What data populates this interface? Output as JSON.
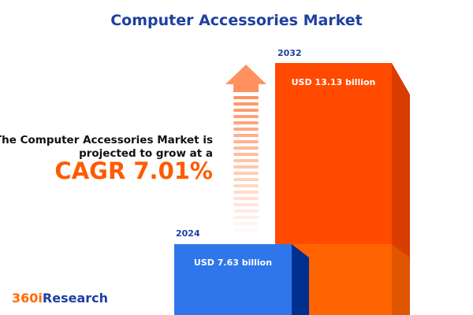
{
  "title": "Computer Accessories Market",
  "headline_line1": "The Computer Accessories Market is",
  "headline_line2": "projected to grow at a",
  "cagr": "CAGR 7.01%",
  "logo": {
    "part1": "360i",
    "part2": "Research"
  },
  "colors": {
    "blue": "#2f76ea",
    "orange": "#ff4a00",
    "navy": "#1e40a0"
  },
  "chart_data": {
    "type": "bar",
    "categories": [
      "2024",
      "2032"
    ],
    "values": [
      7.63,
      13.13
    ],
    "value_labels": [
      "USD 7.63 billion",
      "USD 13.13 billion"
    ],
    "unit": "USD billion"
  }
}
